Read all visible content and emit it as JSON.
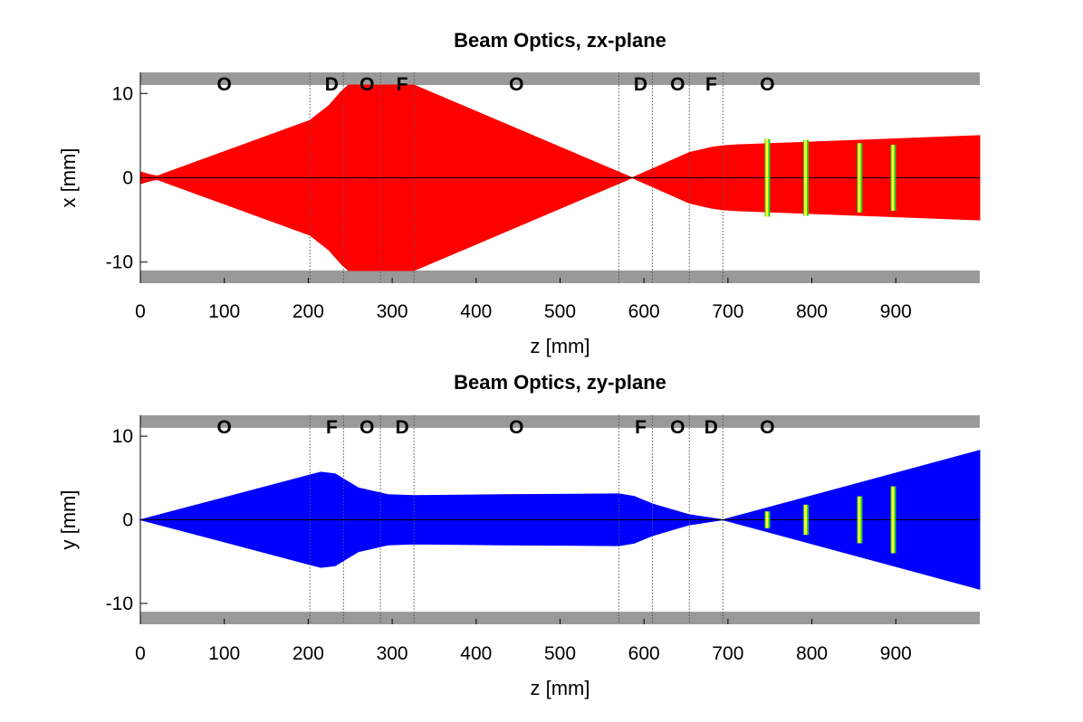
{
  "colors": {
    "aperture": "#999999",
    "boundary": "#555555",
    "zx_beam": "#ff0000",
    "zy_beam": "#0000ff",
    "detector_fill": "#ffff33",
    "detector_edge": "#22cc22",
    "axis": "#000000"
  },
  "chart_data": [
    {
      "type": "area",
      "title": "Beam Optics, zx-plane",
      "xlabel": "z [mm]",
      "ylabel": "x [mm]",
      "xlim": [
        0,
        1000
      ],
      "ylim": [
        -12.5,
        12.5
      ],
      "xticks": [
        0,
        100,
        200,
        300,
        400,
        500,
        600,
        700,
        800,
        900
      ],
      "xtick_labels": [
        "0",
        "100",
        "200",
        "300",
        "400",
        "500",
        "600",
        "700",
        "800",
        "900"
      ],
      "yticks": [
        10,
        0,
        -10
      ],
      "ytick_labels": [
        "10",
        "0",
        "-10"
      ],
      "aperture_mm": 11,
      "element_boundaries": [
        202,
        242,
        286,
        326,
        570,
        610,
        654,
        694
      ],
      "element_labels": [
        {
          "label": "O",
          "z": 100
        },
        {
          "label": "D",
          "z": 228
        },
        {
          "label": "O",
          "z": 270
        },
        {
          "label": "F",
          "z": 312
        },
        {
          "label": "O",
          "z": 448
        },
        {
          "label": "D",
          "z": 596
        },
        {
          "label": "O",
          "z": 640
        },
        {
          "label": "F",
          "z": 680
        },
        {
          "label": "O",
          "z": 747
        }
      ],
      "envelope": {
        "z": [
          0,
          10,
          20,
          202,
          225,
          240,
          248,
          326,
          586,
          654,
          680,
          694,
          710,
          1000
        ],
        "half_width": [
          0.7,
          0.4,
          0.2,
          6.8,
          8.6,
          10.3,
          11,
          11,
          0,
          3,
          3.6,
          3.8,
          3.9,
          5
        ]
      },
      "detectors": [
        {
          "z": 747,
          "half_height": 4.6
        },
        {
          "z": 793,
          "half_height": 4.5
        },
        {
          "z": 857,
          "half_height": 4.1
        },
        {
          "z": 897,
          "half_height": 3.9
        }
      ]
    },
    {
      "type": "area",
      "title": "Beam Optics, zy-plane",
      "xlabel": "z [mm]",
      "ylabel": "y [mm]",
      "xlim": [
        0,
        1000
      ],
      "ylim": [
        -12.5,
        12.5
      ],
      "xticks": [
        0,
        100,
        200,
        300,
        400,
        500,
        600,
        700,
        800,
        900
      ],
      "xtick_labels": [
        "0",
        "100",
        "200",
        "300",
        "400",
        "500",
        "600",
        "700",
        "800",
        "900"
      ],
      "yticks": [
        10,
        0,
        -10
      ],
      "ytick_labels": [
        "10",
        "0",
        "-10"
      ],
      "aperture_mm": 11,
      "element_boundaries": [
        202,
        242,
        286,
        326,
        570,
        610,
        654,
        694
      ],
      "element_labels": [
        {
          "label": "O",
          "z": 100
        },
        {
          "label": "F",
          "z": 228
        },
        {
          "label": "O",
          "z": 270
        },
        {
          "label": "D",
          "z": 312
        },
        {
          "label": "O",
          "z": 448
        },
        {
          "label": "F",
          "z": 596
        },
        {
          "label": "O",
          "z": 640
        },
        {
          "label": "D",
          "z": 680
        },
        {
          "label": "O",
          "z": 747
        }
      ],
      "envelope": {
        "z": [
          0,
          200,
          215,
          232,
          260,
          295,
          326,
          430,
          570,
          588,
          610,
          654,
          694,
          1000
        ],
        "half_width": [
          0,
          5.3,
          5.7,
          5.5,
          3.8,
          3,
          2.9,
          3,
          3.1,
          2.8,
          1.9,
          0.6,
          0,
          8.3
        ]
      },
      "detectors": [
        {
          "z": 747,
          "half_height": 1.0
        },
        {
          "z": 793,
          "half_height": 1.8
        },
        {
          "z": 857,
          "half_height": 2.8
        },
        {
          "z": 897,
          "half_height": 4.0
        }
      ]
    }
  ]
}
